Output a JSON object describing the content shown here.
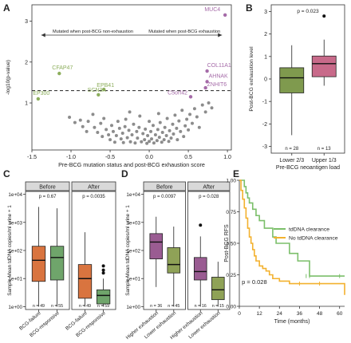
{
  "colors": {
    "green": "#8CAE5C",
    "purple": "#A56BA8",
    "grey_point": "#8C8C8C",
    "box_green": "#7F9A4E",
    "box_pink": "#C86A8A",
    "orange": "#D9743F",
    "green_box": "#6FA56B",
    "purple_box": "#9A5C92",
    "olive_box": "#8FA257",
    "curve_green": "#7BBF6A",
    "curve_orange": "#F3B12E",
    "strip_bg": "#D9D9D9"
  },
  "panels": {
    "A": {
      "letter": "A"
    },
    "B": {
      "letter": "B"
    },
    "C": {
      "letter": "C"
    },
    "D": {
      "letter": "D"
    },
    "E": {
      "letter": "E"
    }
  },
  "chart_data": [
    {
      "panel": "A",
      "type": "scatter",
      "xlabel": "Pre-BCG mutation status and post-BCG exhaustion score",
      "ylabel": "-log10(p-value)",
      "xlim": [
        -1.5,
        1.05
      ],
      "ylim": [
        -0.15,
        3.4
      ],
      "xticks": [
        "-1.5",
        "-1.0",
        "-0.5",
        "0.0",
        "0.5",
        "1.0"
      ],
      "yticks": [
        "1",
        "2",
        "3"
      ],
      "threshold": 1.3,
      "arrow_left_label": "Mutated when post-BCG non-exhaustion",
      "arrow_right_label": "Mutated when post-BCG exhaustion",
      "labeled_points": [
        {
          "label": "MUC4",
          "x": 0.97,
          "y": 3.15,
          "group": "purple"
        },
        {
          "label": "COL11A1",
          "x": 0.74,
          "y": 1.78,
          "group": "purple"
        },
        {
          "label": "AHNAK",
          "x": 0.74,
          "y": 1.52,
          "group": "purple"
        },
        {
          "label": "ZNHIT6",
          "x": 0.72,
          "y": 1.37,
          "group": "purple"
        },
        {
          "label": "C5orf42",
          "x": 0.53,
          "y": 1.15,
          "group": "purple"
        },
        {
          "label": "CFAP47",
          "x": -1.15,
          "y": 1.72,
          "group": "green"
        },
        {
          "label": "EPB41",
          "x": -0.58,
          "y": 1.33,
          "group": "green"
        },
        {
          "label": "SCN3A",
          "x": -0.65,
          "y": 1.2,
          "group": "green"
        },
        {
          "label": "EP300",
          "x": -1.42,
          "y": 1.1,
          "group": "green"
        }
      ],
      "grey_points": [
        [
          -1.02,
          0.65
        ],
        [
          -0.95,
          0.52
        ],
        [
          -0.88,
          0.58
        ],
        [
          -0.85,
          0.42
        ],
        [
          -0.8,
          0.3
        ],
        [
          -0.78,
          0.55
        ],
        [
          -0.72,
          0.72
        ],
        [
          -0.7,
          0.4
        ],
        [
          -0.66,
          0.28
        ],
        [
          -0.62,
          0.5
        ],
        [
          -0.6,
          0.18
        ],
        [
          -0.58,
          0.62
        ],
        [
          -0.55,
          0.35
        ],
        [
          -0.52,
          0.22
        ],
        [
          -0.5,
          0.1
        ],
        [
          -0.48,
          0.45
        ],
        [
          -0.46,
          0.3
        ],
        [
          -0.44,
          0.04
        ],
        [
          -0.42,
          0.2
        ],
        [
          -0.4,
          0.55
        ],
        [
          -0.38,
          0.38
        ],
        [
          -0.36,
          0.12
        ],
        [
          -0.34,
          0.26
        ],
        [
          -0.33,
          0.03
        ],
        [
          -0.31,
          0.42
        ],
        [
          -0.3,
          0.6
        ],
        [
          -0.28,
          0.15
        ],
        [
          -0.26,
          0.33
        ],
        [
          -0.24,
          0.05
        ],
        [
          -0.22,
          0.22
        ],
        [
          -0.2,
          0.48
        ],
        [
          -0.18,
          0.02
        ],
        [
          -0.16,
          0.3
        ],
        [
          -0.15,
          0.14
        ],
        [
          -0.13,
          0.4
        ],
        [
          -0.12,
          0.68
        ],
        [
          -0.1,
          0.05
        ],
        [
          -0.08,
          0.25
        ],
        [
          -0.06,
          0.1
        ],
        [
          -0.05,
          0.36
        ],
        [
          -0.03,
          0.01
        ],
        [
          -0.02,
          0.2
        ],
        [
          0.0,
          0.06
        ],
        [
          0.02,
          0.3
        ],
        [
          0.03,
          0.12
        ],
        [
          0.05,
          0.45
        ],
        [
          0.06,
          0.02
        ],
        [
          0.08,
          0.22
        ],
        [
          0.1,
          0.08
        ],
        [
          0.11,
          0.35
        ],
        [
          0.13,
          0.16
        ],
        [
          0.14,
          0.52
        ],
        [
          0.16,
          0.04
        ],
        [
          0.17,
          0.28
        ],
        [
          0.19,
          0.1
        ],
        [
          0.2,
          0.4
        ],
        [
          0.22,
          0.2
        ],
        [
          0.23,
          0.62
        ],
        [
          0.25,
          0.06
        ],
        [
          0.26,
          0.32
        ],
        [
          0.28,
          0.14
        ],
        [
          0.3,
          0.48
        ],
        [
          0.31,
          0.24
        ],
        [
          0.33,
          0.7
        ],
        [
          0.35,
          0.38
        ],
        [
          0.36,
          0.1
        ],
        [
          0.38,
          0.56
        ],
        [
          0.4,
          0.3
        ],
        [
          0.42,
          0.82
        ],
        [
          0.44,
          0.18
        ],
        [
          0.46,
          0.44
        ],
        [
          0.48,
          0.6
        ],
        [
          0.5,
          0.34
        ],
        [
          0.52,
          0.72
        ],
        [
          0.55,
          0.5
        ],
        [
          0.58,
          0.86
        ],
        [
          0.61,
          0.66
        ],
        [
          0.64,
          0.4
        ],
        [
          0.68,
          0.95
        ],
        [
          0.72,
          0.78
        ],
        [
          0.76,
          1.0
        ],
        [
          0.8,
          0.88
        ],
        [
          -0.25,
          0.78
        ],
        [
          0.12,
          0.74
        ],
        [
          0.0,
          0.55
        ]
      ]
    },
    {
      "panel": "B",
      "type": "box",
      "ylabel": "Post-BCG exhaustion level",
      "xlabel": "Pre-BCG neoantigen load",
      "pvalue": "p = 0.023",
      "yticks": [
        "-3",
        "-2",
        "-1",
        "0",
        "1",
        "2",
        "3"
      ],
      "ylim": [
        -3.3,
        3.3
      ],
      "groups": [
        {
          "name": "Lower 2/3",
          "n": "n = 28",
          "q1": -0.62,
          "median": 0.05,
          "q3": 0.5,
          "low": -2.5,
          "high": 1.5,
          "outliers": [],
          "color": "box_green"
        },
        {
          "name": "Upper 1/3",
          "n": "n = 13",
          "q1": 0.1,
          "median": 0.68,
          "q3": 1.02,
          "low": -0.3,
          "high": 1.75,
          "outliers": [
            2.8
          ],
          "color": "box_pink"
        }
      ]
    },
    {
      "panel": "C",
      "type": "box",
      "ylabel": "Sample Mean tdDNA copies/ml urine + 1",
      "yticks": [
        "1e+00",
        "1e+01",
        "1e+02",
        "1e+03",
        "1e+04"
      ],
      "facets": [
        {
          "strip": "Before",
          "pvalue": "p = 0.67",
          "groups": [
            {
              "name": "BCG-failure",
              "n": "n = 49",
              "q1": 0.9,
              "median": 1.65,
              "q3": 2.15,
              "low": 0.0,
              "high": 3.55,
              "outliers": [],
              "color": "orange"
            },
            {
              "name": "BCG-responsive",
              "n": "n = 55",
              "q1": 0.95,
              "median": 1.75,
              "q3": 2.15,
              "low": 0.0,
              "high": 3.5,
              "outliers": [],
              "color": "green_box"
            }
          ]
        },
        {
          "strip": "After",
          "pvalue": "p = 0.0035",
          "groups": [
            {
              "name": "BCG-failure",
              "n": "n = 49",
              "q1": 0.3,
              "median": 1.0,
              "q3": 1.5,
              "low": 0.0,
              "high": 2.65,
              "outliers": [],
              "color": "orange"
            },
            {
              "name": "BCG-responsive",
              "n": "n = 59",
              "q1": 0.1,
              "median": 0.4,
              "q3": 0.6,
              "low": 0.0,
              "high": 1.0,
              "outliers": [
                1.2,
                1.3,
                1.45
              ],
              "color": "green_box"
            }
          ]
        }
      ]
    },
    {
      "panel": "D",
      "type": "box",
      "ylabel": "Sample Mean tdDNA copies/ml urine + 1",
      "yticks": [
        "1e+00",
        "1e+01",
        "1e+02",
        "1e+03",
        "1e+04"
      ],
      "facets": [
        {
          "strip": "Before",
          "pvalue": "p = 0.0097",
          "groups": [
            {
              "name": "Higher exhaustion",
              "n": "n = 36",
              "q1": 1.7,
              "median": 2.3,
              "q3": 2.6,
              "low": 0.7,
              "high": 3.2,
              "outliers": [],
              "color": "purple_box"
            },
            {
              "name": "Lower exhaustion",
              "n": "n = 45",
              "q1": 1.2,
              "median": 1.5,
              "q3": 2.1,
              "low": 0.0,
              "high": 2.85,
              "outliers": [],
              "color": "olive_box"
            }
          ]
        },
        {
          "strip": "After",
          "pvalue": "p = 0.028",
          "groups": [
            {
              "name": "Higher exhaustion",
              "n": "n = 16",
              "q1": 0.95,
              "median": 1.25,
              "q3": 1.75,
              "low": 0.0,
              "high": 2.5,
              "outliers": [
                2.9
              ],
              "color": "purple_box"
            },
            {
              "name": "Lower exhaustion",
              "n": "n = 15",
              "q1": 0.25,
              "median": 0.6,
              "q3": 1.05,
              "low": 0.0,
              "high": 1.6,
              "outliers": [],
              "color": "olive_box"
            }
          ]
        }
      ]
    },
    {
      "panel": "E",
      "type": "line",
      "ylabel": "Post-BCG RFS",
      "xlabel": "Time (months)",
      "pvalue": "p = 0.028",
      "xlim": [
        0,
        63
      ],
      "ylim": [
        0,
        1.0
      ],
      "xticks": [
        "0",
        "12",
        "24",
        "36",
        "48",
        "60"
      ],
      "yticks": [
        "0.00",
        "0.25",
        "0.50",
        "0.75",
        "1.00"
      ],
      "series": [
        {
          "name": "tdDNA clearance",
          "color": "curve_green",
          "x": [
            0,
            3,
            4,
            5,
            6,
            8,
            10,
            12,
            15,
            20,
            22,
            30,
            35,
            42,
            63
          ],
          "y": [
            1.0,
            0.95,
            0.9,
            0.86,
            0.82,
            0.77,
            0.72,
            0.68,
            0.62,
            0.55,
            0.5,
            0.42,
            0.36,
            0.24,
            0.24
          ],
          "censor": [
            [
              40,
              0.24
            ],
            [
              42,
              0.24
            ],
            [
              60,
              0.24
            ]
          ]
        },
        {
          "name": "No tdDNA clearance",
          "color": "curve_orange",
          "x": [
            0,
            1,
            2,
            3,
            4,
            5,
            6,
            7,
            8,
            9,
            10,
            12,
            14,
            16,
            18,
            20,
            24,
            30,
            60,
            63
          ],
          "y": [
            1.0,
            0.92,
            0.85,
            0.78,
            0.7,
            0.62,
            0.55,
            0.5,
            0.45,
            0.4,
            0.36,
            0.32,
            0.3,
            0.28,
            0.25,
            0.22,
            0.2,
            0.18,
            0.18,
            0.09
          ],
          "censor": [
            [
              36,
              0.18
            ],
            [
              48,
              0.18
            ]
          ]
        }
      ]
    }
  ]
}
